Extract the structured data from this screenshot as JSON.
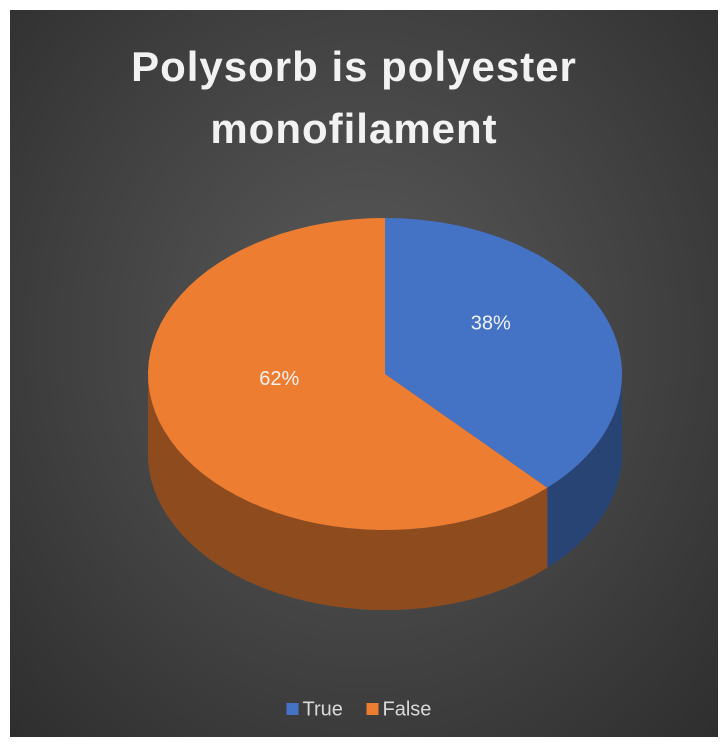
{
  "chart_data": {
    "type": "pie",
    "title": "Polysorb is polyester monofilament",
    "categories": [
      "True",
      "False"
    ],
    "values": [
      38,
      62
    ],
    "value_labels": [
      "38%",
      "62%"
    ],
    "colors": [
      "#4472c4",
      "#ed7d31"
    ],
    "legend": "bottom"
  }
}
